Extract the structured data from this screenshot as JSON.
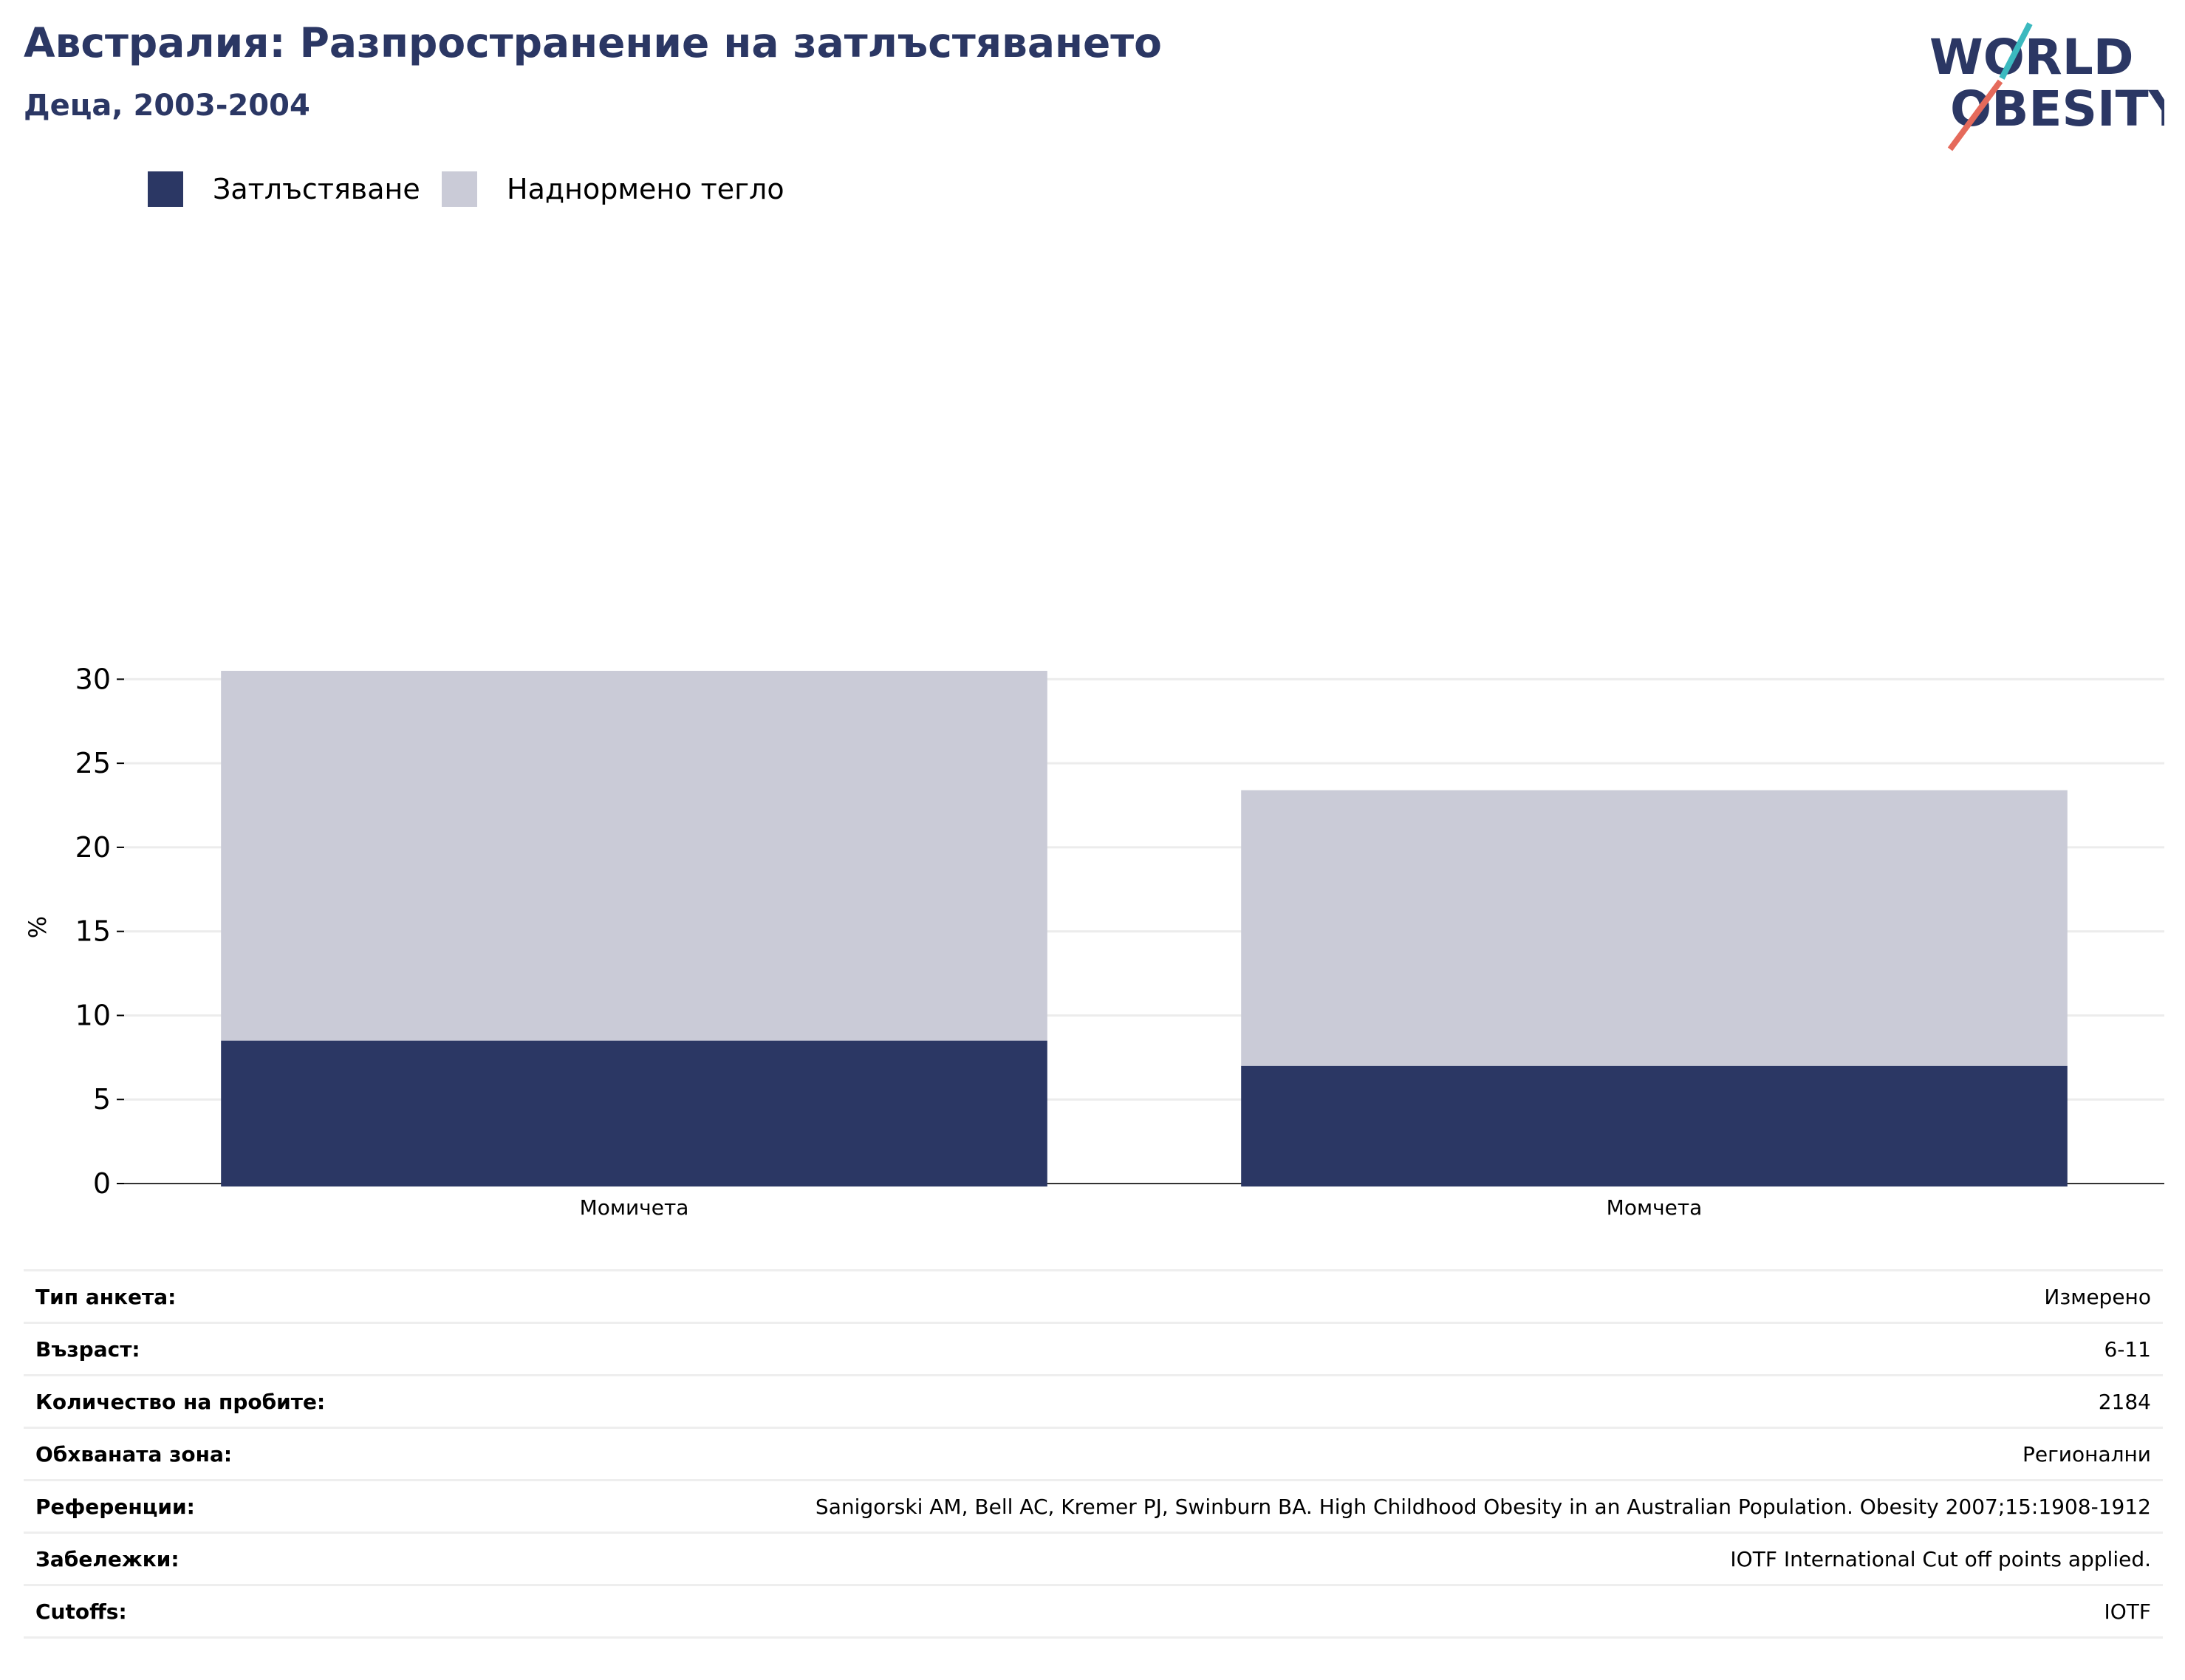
{
  "header": {
    "title": "Австралия: Разпространение на затлъстяването",
    "subtitle": "Деца, 2003-2004"
  },
  "logo": {
    "line1": "WORLD",
    "line2": "OBESITY",
    "colors": {
      "text": "#2b3764",
      "slash_top": "#3bb9bf",
      "slash_bottom": "#e56a5b"
    }
  },
  "chart_data": {
    "type": "bar",
    "stacked": true,
    "categories": [
      "Момичета",
      "Момчета"
    ],
    "series": [
      {
        "name": "Затлъстяване",
        "color": "#2b3764",
        "values": [
          8.5,
          7.0
        ]
      },
      {
        "name": "Наднормено тегло",
        "color": "#cacbd7",
        "values": [
          22.0,
          16.4
        ]
      }
    ],
    "ylabel": "%",
    "ylim": [
      0,
      30.5
    ],
    "yticks": [
      0,
      5,
      10,
      15,
      20,
      25,
      30
    ],
    "grid": true,
    "legend": "top-left"
  },
  "info": [
    {
      "key": "Тип анкета:",
      "value": "Измерено"
    },
    {
      "key": "Възраст:",
      "value": "6-11"
    },
    {
      "key": "Количество на пробите:",
      "value": "2184"
    },
    {
      "key": "Обхваната зона:",
      "value": "Регионални"
    },
    {
      "key": "Референции:",
      "value": "Sanigorski AM, Bell AC, Kremer PJ, Swinburn BA. High Childhood Obesity in an Australian Population. Obesity 2007;15:1908-1912"
    },
    {
      "key": "Забележки:",
      "value": "IOTF International Cut off points applied."
    },
    {
      "key": "Cutoffs:",
      "value": "IOTF"
    }
  ]
}
